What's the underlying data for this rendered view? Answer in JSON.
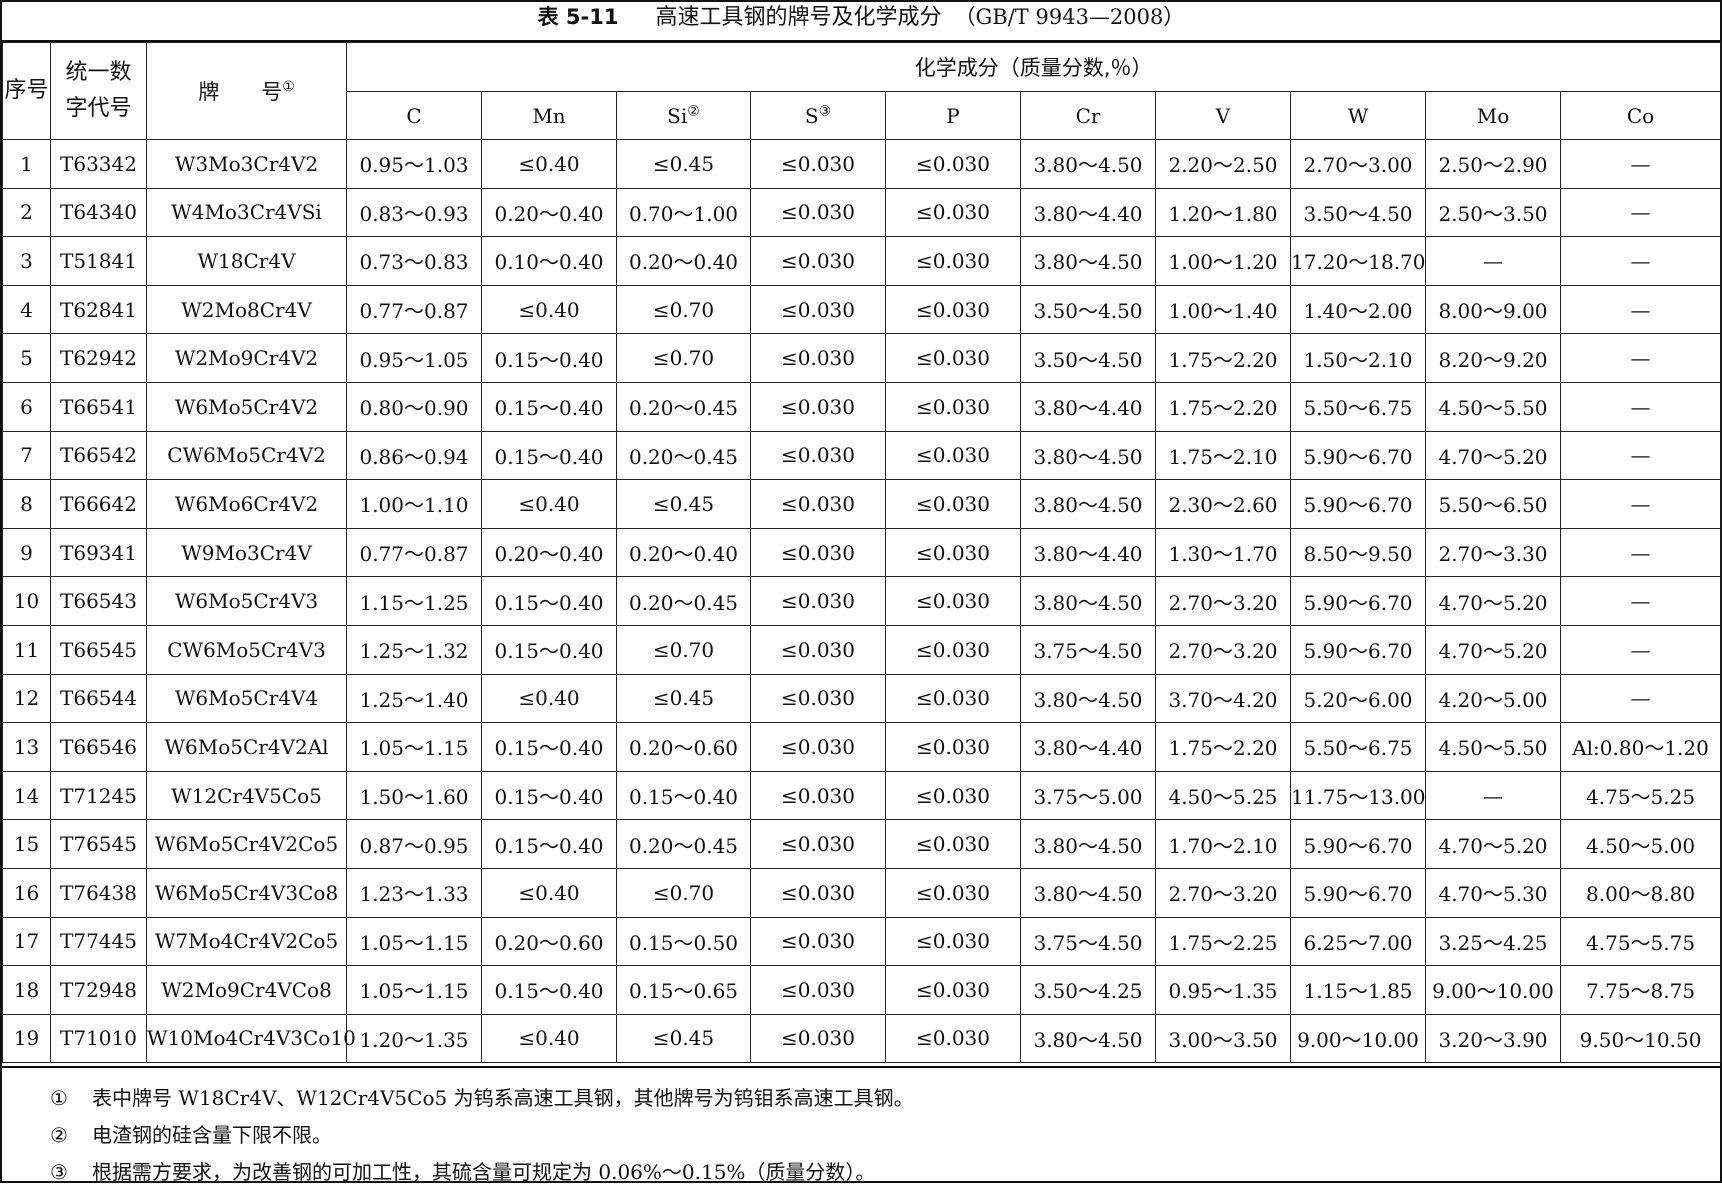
{
  "title": {
    "number": "表 5-11",
    "name": "高速工具钢的牌号及化学成分",
    "standard": "（GB/T 9943—2008）"
  },
  "header": {
    "seq": "序号",
    "code_line1": "统一数",
    "code_line2": "字代号",
    "grade": "牌　　号",
    "grade_mark": "①",
    "composition": "化学成分（质量分数,％）",
    "elements": [
      {
        "label": "C",
        "mark": ""
      },
      {
        "label": "Mn",
        "mark": ""
      },
      {
        "label": "Si",
        "mark": "②"
      },
      {
        "label": "S",
        "mark": "③"
      },
      {
        "label": "P",
        "mark": ""
      },
      {
        "label": "Cr",
        "mark": ""
      },
      {
        "label": "V",
        "mark": ""
      },
      {
        "label": "W",
        "mark": ""
      },
      {
        "label": "Mo",
        "mark": ""
      },
      {
        "label": "Co",
        "mark": ""
      }
    ]
  },
  "rows": [
    [
      "1",
      "T63342",
      "W3Mo3Cr4V2",
      "0.95～1.03",
      "≤0.40",
      "≤0.45",
      "≤0.030",
      "≤0.030",
      "3.80～4.50",
      "2.20～2.50",
      "2.70～3.00",
      "2.50～2.90",
      "—"
    ],
    [
      "2",
      "T64340",
      "W4Mo3Cr4VSi",
      "0.83～0.93",
      "0.20～0.40",
      "0.70～1.00",
      "≤0.030",
      "≤0.030",
      "3.80～4.40",
      "1.20～1.80",
      "3.50～4.50",
      "2.50～3.50",
      "—"
    ],
    [
      "3",
      "T51841",
      "W18Cr4V",
      "0.73～0.83",
      "0.10～0.40",
      "0.20～0.40",
      "≤0.030",
      "≤0.030",
      "3.80～4.50",
      "1.00～1.20",
      "17.20～18.70",
      "—",
      "—"
    ],
    [
      "4",
      "T62841",
      "W2Mo8Cr4V",
      "0.77～0.87",
      "≤0.40",
      "≤0.70",
      "≤0.030",
      "≤0.030",
      "3.50～4.50",
      "1.00～1.40",
      "1.40～2.00",
      "8.00～9.00",
      "—"
    ],
    [
      "5",
      "T62942",
      "W2Mo9Cr4V2",
      "0.95～1.05",
      "0.15～0.40",
      "≤0.70",
      "≤0.030",
      "≤0.030",
      "3.50～4.50",
      "1.75～2.20",
      "1.50～2.10",
      "8.20～9.20",
      "—"
    ],
    [
      "6",
      "T66541",
      "W6Mo5Cr4V2",
      "0.80～0.90",
      "0.15～0.40",
      "0.20～0.45",
      "≤0.030",
      "≤0.030",
      "3.80～4.40",
      "1.75～2.20",
      "5.50～6.75",
      "4.50～5.50",
      "—"
    ],
    [
      "7",
      "T66542",
      "CW6Mo5Cr4V2",
      "0.86～0.94",
      "0.15～0.40",
      "0.20～0.45",
      "≤0.030",
      "≤0.030",
      "3.80～4.50",
      "1.75～2.10",
      "5.90～6.70",
      "4.70～5.20",
      "—"
    ],
    [
      "8",
      "T66642",
      "W6Mo6Cr4V2",
      "1.00～1.10",
      "≤0.40",
      "≤0.45",
      "≤0.030",
      "≤0.030",
      "3.80～4.50",
      "2.30～2.60",
      "5.90～6.70",
      "5.50～6.50",
      "—"
    ],
    [
      "9",
      "T69341",
      "W9Mo3Cr4V",
      "0.77～0.87",
      "0.20～0.40",
      "0.20～0.40",
      "≤0.030",
      "≤0.030",
      "3.80～4.40",
      "1.30～1.70",
      "8.50～9.50",
      "2.70～3.30",
      "—"
    ],
    [
      "10",
      "T66543",
      "W6Mo5Cr4V3",
      "1.15～1.25",
      "0.15～0.40",
      "0.20～0.45",
      "≤0.030",
      "≤0.030",
      "3.80～4.50",
      "2.70～3.20",
      "5.90～6.70",
      "4.70～5.20",
      "—"
    ],
    [
      "11",
      "T66545",
      "CW6Mo5Cr4V3",
      "1.25～1.32",
      "0.15～0.40",
      "≤0.70",
      "≤0.030",
      "≤0.030",
      "3.75～4.50",
      "2.70～3.20",
      "5.90～6.70",
      "4.70～5.20",
      "—"
    ],
    [
      "12",
      "T66544",
      "W6Mo5Cr4V4",
      "1.25～1.40",
      "≤0.40",
      "≤0.45",
      "≤0.030",
      "≤0.030",
      "3.80～4.50",
      "3.70～4.20",
      "5.20～6.00",
      "4.20～5.00",
      "—"
    ],
    [
      "13",
      "T66546",
      "W6Mo5Cr4V2Al",
      "1.05～1.15",
      "0.15～0.40",
      "0.20～0.60",
      "≤0.030",
      "≤0.030",
      "3.80～4.40",
      "1.75～2.20",
      "5.50～6.75",
      "4.50～5.50",
      "Al:0.80～1.20"
    ],
    [
      "14",
      "T71245",
      "W12Cr4V5Co5",
      "1.50～1.60",
      "0.15～0.40",
      "0.15～0.40",
      "≤0.030",
      "≤0.030",
      "3.75～5.00",
      "4.50～5.25",
      "11.75～13.00",
      "—",
      "4.75～5.25"
    ],
    [
      "15",
      "T76545",
      "W6Mo5Cr4V2Co5",
      "0.87～0.95",
      "0.15～0.40",
      "0.20～0.45",
      "≤0.030",
      "≤0.030",
      "3.80～4.50",
      "1.70～2.10",
      "5.90～6.70",
      "4.70～5.20",
      "4.50～5.00"
    ],
    [
      "16",
      "T76438",
      "W6Mo5Cr4V3Co8",
      "1.23～1.33",
      "≤0.40",
      "≤0.70",
      "≤0.030",
      "≤0.030",
      "3.80～4.50",
      "2.70～3.20",
      "5.90～6.70",
      "4.70～5.30",
      "8.00～8.80"
    ],
    [
      "17",
      "T77445",
      "W7Mo4Cr4V2Co5",
      "1.05～1.15",
      "0.20～0.60",
      "0.15～0.50",
      "≤0.030",
      "≤0.030",
      "3.75～4.50",
      "1.75～2.25",
      "6.25～7.00",
      "3.25～4.25",
      "4.75～5.75"
    ],
    [
      "18",
      "T72948",
      "W2Mo9Cr4VCo8",
      "1.05～1.15",
      "0.15～0.40",
      "0.15～0.65",
      "≤0.030",
      "≤0.030",
      "3.50～4.25",
      "0.95～1.35",
      "1.15～1.85",
      "9.00～10.00",
      "7.75～8.75"
    ],
    [
      "19",
      "T71010",
      "W10Mo4Cr4V3Co10",
      "1.20～1.35",
      "≤0.40",
      "≤0.45",
      "≤0.030",
      "≤0.030",
      "3.80～4.50",
      "3.00～3.50",
      "9.00～10.00",
      "3.20～3.90",
      "9.50～10.50"
    ]
  ],
  "notes": [
    {
      "mark": "①",
      "text": "表中牌号 W18Cr4V、W12Cr4V5Co5 为钨系高速工具钢，其他牌号为钨钼系高速工具钢。"
    },
    {
      "mark": "②",
      "text": "电渣钢的硅含量下限不限。"
    },
    {
      "mark": "③",
      "text": "根据需方要求，为改善钢的可加工性，其硫含量可规定为 0.06%～0.15%（质量分数）。"
    }
  ]
}
